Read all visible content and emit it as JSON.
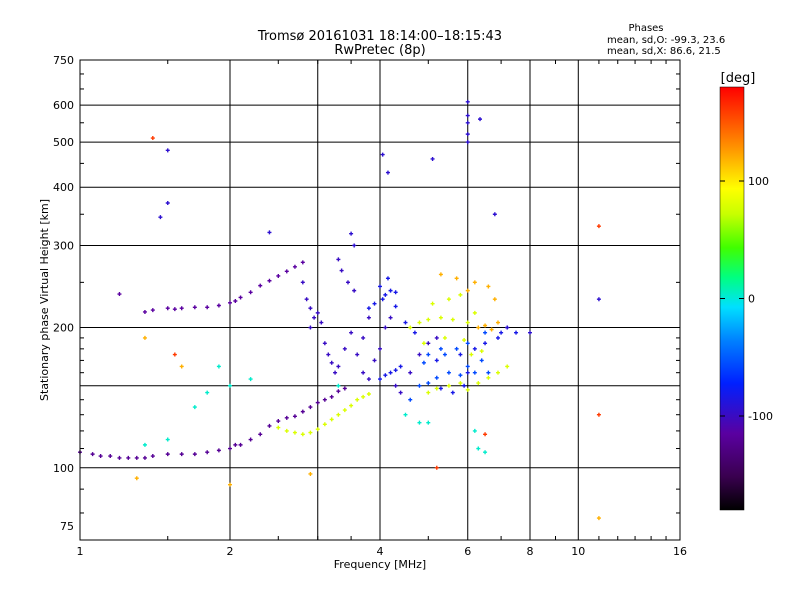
{
  "chart_data": {
    "type": "scatter",
    "title": "Tromsø 20161031 18:14:00–18:15:43",
    "subtitle": "RwPretec (8p)",
    "xlabel": "Frequency [MHz]",
    "ylabel": "Stationary phase Virtual Height [km]",
    "xscale": "log",
    "yscale": "log",
    "xlim": [
      1,
      16
    ],
    "ylim": [
      70,
      750
    ],
    "x_ticks": [
      1,
      2,
      4,
      6,
      8,
      10,
      16
    ],
    "y_ticks": [
      75,
      100,
      200,
      300,
      400,
      500,
      600,
      750
    ],
    "x_grid": [
      2,
      3,
      4,
      6,
      8,
      10
    ],
    "y_grid": [
      100,
      150,
      200,
      300,
      400,
      500,
      600
    ],
    "grid": true,
    "phase_stats": {
      "heading": "Phases",
      "line_o": "mean, sd,O: -99.3, 23.6",
      "line_x": "mean, sd,X:  86.6, 21.5"
    },
    "colorbar": {
      "unit": "[deg]",
      "range": [
        -180,
        180
      ],
      "ticks": [
        100,
        0,
        -100
      ],
      "tick_labels": [
        "100",
        "0",
        "-100"
      ],
      "colormap": "rainbow (black-purple-blue-cyan-green-yellow-orange-red)"
    },
    "series": [
      {
        "phase": -120,
        "points": [
          [
            1.0,
            108
          ],
          [
            1.06,
            107
          ],
          [
            1.1,
            106
          ],
          [
            1.15,
            106
          ],
          [
            1.2,
            105
          ],
          [
            1.25,
            105
          ],
          [
            1.3,
            105
          ],
          [
            1.35,
            105
          ],
          [
            1.4,
            106
          ],
          [
            1.5,
            107
          ],
          [
            1.6,
            107
          ],
          [
            1.7,
            107
          ],
          [
            1.8,
            108
          ],
          [
            1.9,
            109
          ],
          [
            2.0,
            110
          ],
          [
            2.05,
            112
          ],
          [
            2.1,
            112
          ],
          [
            2.2,
            115
          ],
          [
            2.3,
            118
          ],
          [
            2.4,
            123
          ],
          [
            2.5,
            126
          ],
          [
            2.6,
            128
          ],
          [
            2.7,
            129
          ],
          [
            2.8,
            132
          ],
          [
            2.9,
            135
          ],
          [
            3.0,
            138
          ],
          [
            3.1,
            140
          ],
          [
            3.2,
            142
          ],
          [
            3.3,
            146
          ],
          [
            3.4,
            148
          ]
        ]
      },
      {
        "phase": -115,
        "points": [
          [
            1.5,
            220
          ],
          [
            1.55,
            219
          ],
          [
            1.6,
            220
          ],
          [
            1.7,
            221
          ],
          [
            1.8,
            221
          ],
          [
            1.9,
            223
          ],
          [
            2.0,
            226
          ],
          [
            2.05,
            228
          ],
          [
            2.1,
            232
          ],
          [
            2.2,
            238
          ],
          [
            2.3,
            246
          ],
          [
            2.4,
            252
          ],
          [
            2.5,
            258
          ],
          [
            2.6,
            264
          ],
          [
            2.7,
            270
          ],
          [
            2.8,
            276
          ],
          [
            1.35,
            216
          ],
          [
            1.4,
            218
          ],
          [
            1.2,
            236
          ]
        ]
      },
      {
        "phase": -100,
        "points": [
          [
            2.9,
            200
          ],
          [
            2.95,
            210
          ],
          [
            3.0,
            215
          ],
          [
            3.05,
            205
          ],
          [
            3.1,
            185
          ],
          [
            3.15,
            175
          ],
          [
            3.2,
            168
          ],
          [
            3.25,
            160
          ],
          [
            3.3,
            165
          ],
          [
            3.4,
            180
          ],
          [
            3.5,
            195
          ],
          [
            3.6,
            175
          ],
          [
            3.7,
            160
          ],
          [
            3.8,
            155
          ],
          [
            3.9,
            170
          ],
          [
            4.0,
            180
          ],
          [
            4.1,
            200
          ],
          [
            4.2,
            210
          ],
          [
            3.55,
            240
          ],
          [
            3.45,
            250
          ],
          [
            3.35,
            265
          ],
          [
            3.3,
            280
          ],
          [
            2.8,
            250
          ],
          [
            2.85,
            230
          ],
          [
            2.9,
            220
          ],
          [
            3.7,
            190
          ],
          [
            3.8,
            210
          ],
          [
            4.3,
            150
          ],
          [
            4.4,
            145
          ],
          [
            4.6,
            160
          ],
          [
            4.8,
            175
          ],
          [
            5.0,
            185
          ],
          [
            5.2,
            190
          ]
        ]
      },
      {
        "phase": -85,
        "points": [
          [
            4.0,
            155
          ],
          [
            4.1,
            158
          ],
          [
            4.2,
            160
          ],
          [
            4.3,
            162
          ],
          [
            4.4,
            165
          ],
          [
            4.05,
            230
          ],
          [
            4.1,
            235
          ],
          [
            4.2,
            240
          ],
          [
            4.3,
            238
          ],
          [
            3.9,
            225
          ],
          [
            3.8,
            220
          ],
          [
            4.0,
            245
          ],
          [
            4.15,
            255
          ],
          [
            4.3,
            222
          ],
          [
            4.5,
            205
          ],
          [
            4.7,
            195
          ],
          [
            5.3,
            148
          ],
          [
            5.6,
            145
          ],
          [
            5.9,
            150
          ],
          [
            6.0,
            160
          ],
          [
            5.2,
            170
          ],
          [
            5.8,
            175
          ],
          [
            6.2,
            180
          ],
          [
            6.5,
            185
          ],
          [
            6.9,
            190
          ],
          [
            7.0,
            195
          ],
          [
            7.2,
            200
          ],
          [
            7.5,
            195
          ]
        ]
      },
      {
        "phase": -60,
        "points": [
          [
            5.0,
            152
          ],
          [
            5.2,
            156
          ],
          [
            5.5,
            160
          ],
          [
            5.8,
            158
          ],
          [
            6.0,
            165
          ],
          [
            6.2,
            160
          ],
          [
            6.4,
            170
          ],
          [
            5.4,
            175
          ],
          [
            5.7,
            180
          ],
          [
            6.0,
            185
          ],
          [
            6.5,
            195
          ],
          [
            5.0,
            175
          ],
          [
            4.8,
            150
          ],
          [
            4.6,
            140
          ],
          [
            4.9,
            168
          ],
          [
            5.3,
            180
          ],
          [
            6.6,
            160
          ]
        ]
      },
      {
        "phase": 80,
        "points": [
          [
            2.5,
            122
          ],
          [
            2.6,
            120
          ],
          [
            2.7,
            119
          ],
          [
            2.8,
            118
          ],
          [
            2.9,
            119
          ],
          [
            3.0,
            121
          ],
          [
            3.1,
            124
          ],
          [
            3.2,
            127
          ],
          [
            3.3,
            130
          ],
          [
            3.4,
            133
          ],
          [
            3.5,
            136
          ],
          [
            3.6,
            140
          ],
          [
            3.7,
            142
          ],
          [
            3.8,
            144
          ],
          [
            5.0,
            145
          ],
          [
            5.2,
            148
          ],
          [
            5.5,
            150
          ],
          [
            5.8,
            152
          ],
          [
            6.0,
            147
          ],
          [
            6.3,
            152
          ],
          [
            6.6,
            156
          ],
          [
            6.9,
            160
          ],
          [
            7.2,
            165
          ],
          [
            4.6,
            200
          ],
          [
            4.8,
            205
          ],
          [
            5.0,
            208
          ],
          [
            5.3,
            210
          ],
          [
            5.6,
            208
          ],
          [
            6.0,
            205
          ],
          [
            4.9,
            185
          ],
          [
            5.4,
            190
          ],
          [
            5.9,
            188
          ],
          [
            6.1,
            175
          ],
          [
            6.4,
            178
          ],
          [
            5.1,
            225
          ],
          [
            5.5,
            230
          ],
          [
            5.8,
            235
          ],
          [
            6.2,
            215
          ]
        ]
      },
      {
        "phase": 120,
        "points": [
          [
            6.3,
            200
          ],
          [
            6.5,
            202
          ],
          [
            6.7,
            198
          ],
          [
            6.9,
            205
          ],
          [
            6.2,
            250
          ],
          [
            6.6,
            245
          ],
          [
            6.8,
            230
          ],
          [
            5.3,
            260
          ],
          [
            5.7,
            255
          ],
          [
            6.0,
            240
          ],
          [
            1.3,
            95
          ],
          [
            2.0,
            92
          ],
          [
            2.9,
            97
          ],
          [
            1.35,
            190
          ],
          [
            1.6,
            165
          ],
          [
            11,
            78
          ]
        ]
      },
      {
        "phase": 160,
        "points": [
          [
            1.4,
            510
          ],
          [
            11,
            330
          ],
          [
            11,
            130
          ],
          [
            1.55,
            175
          ],
          [
            5.2,
            100
          ],
          [
            6.5,
            118
          ]
        ]
      },
      {
        "phase": -95,
        "points": [
          [
            6.0,
            500
          ],
          [
            6.0,
            520
          ],
          [
            6.0,
            550
          ],
          [
            6.0,
            570
          ],
          [
            6.0,
            610
          ],
          [
            6.35,
            560
          ],
          [
            4.05,
            470
          ],
          [
            4.15,
            430
          ],
          [
            5.1,
            460
          ],
          [
            6.8,
            350
          ],
          [
            1.5,
            480
          ],
          [
            1.5,
            370
          ],
          [
            1.45,
            345
          ],
          [
            2.4,
            320
          ],
          [
            3.5,
            318
          ],
          [
            3.55,
            300
          ],
          [
            11,
            230
          ],
          [
            7.2,
            200
          ],
          [
            8.0,
            195
          ]
        ]
      },
      {
        "phase": 0,
        "points": [
          [
            1.7,
            135
          ],
          [
            2.0,
            150
          ],
          [
            2.2,
            155
          ],
          [
            1.9,
            165
          ],
          [
            1.8,
            145
          ],
          [
            3.3,
            150
          ],
          [
            6.2,
            120
          ],
          [
            6.5,
            108
          ],
          [
            1.5,
            115
          ],
          [
            1.35,
            112
          ],
          [
            4.5,
            130
          ],
          [
            4.8,
            125
          ],
          [
            5.0,
            125
          ],
          [
            6.3,
            110
          ]
        ]
      }
    ]
  }
}
